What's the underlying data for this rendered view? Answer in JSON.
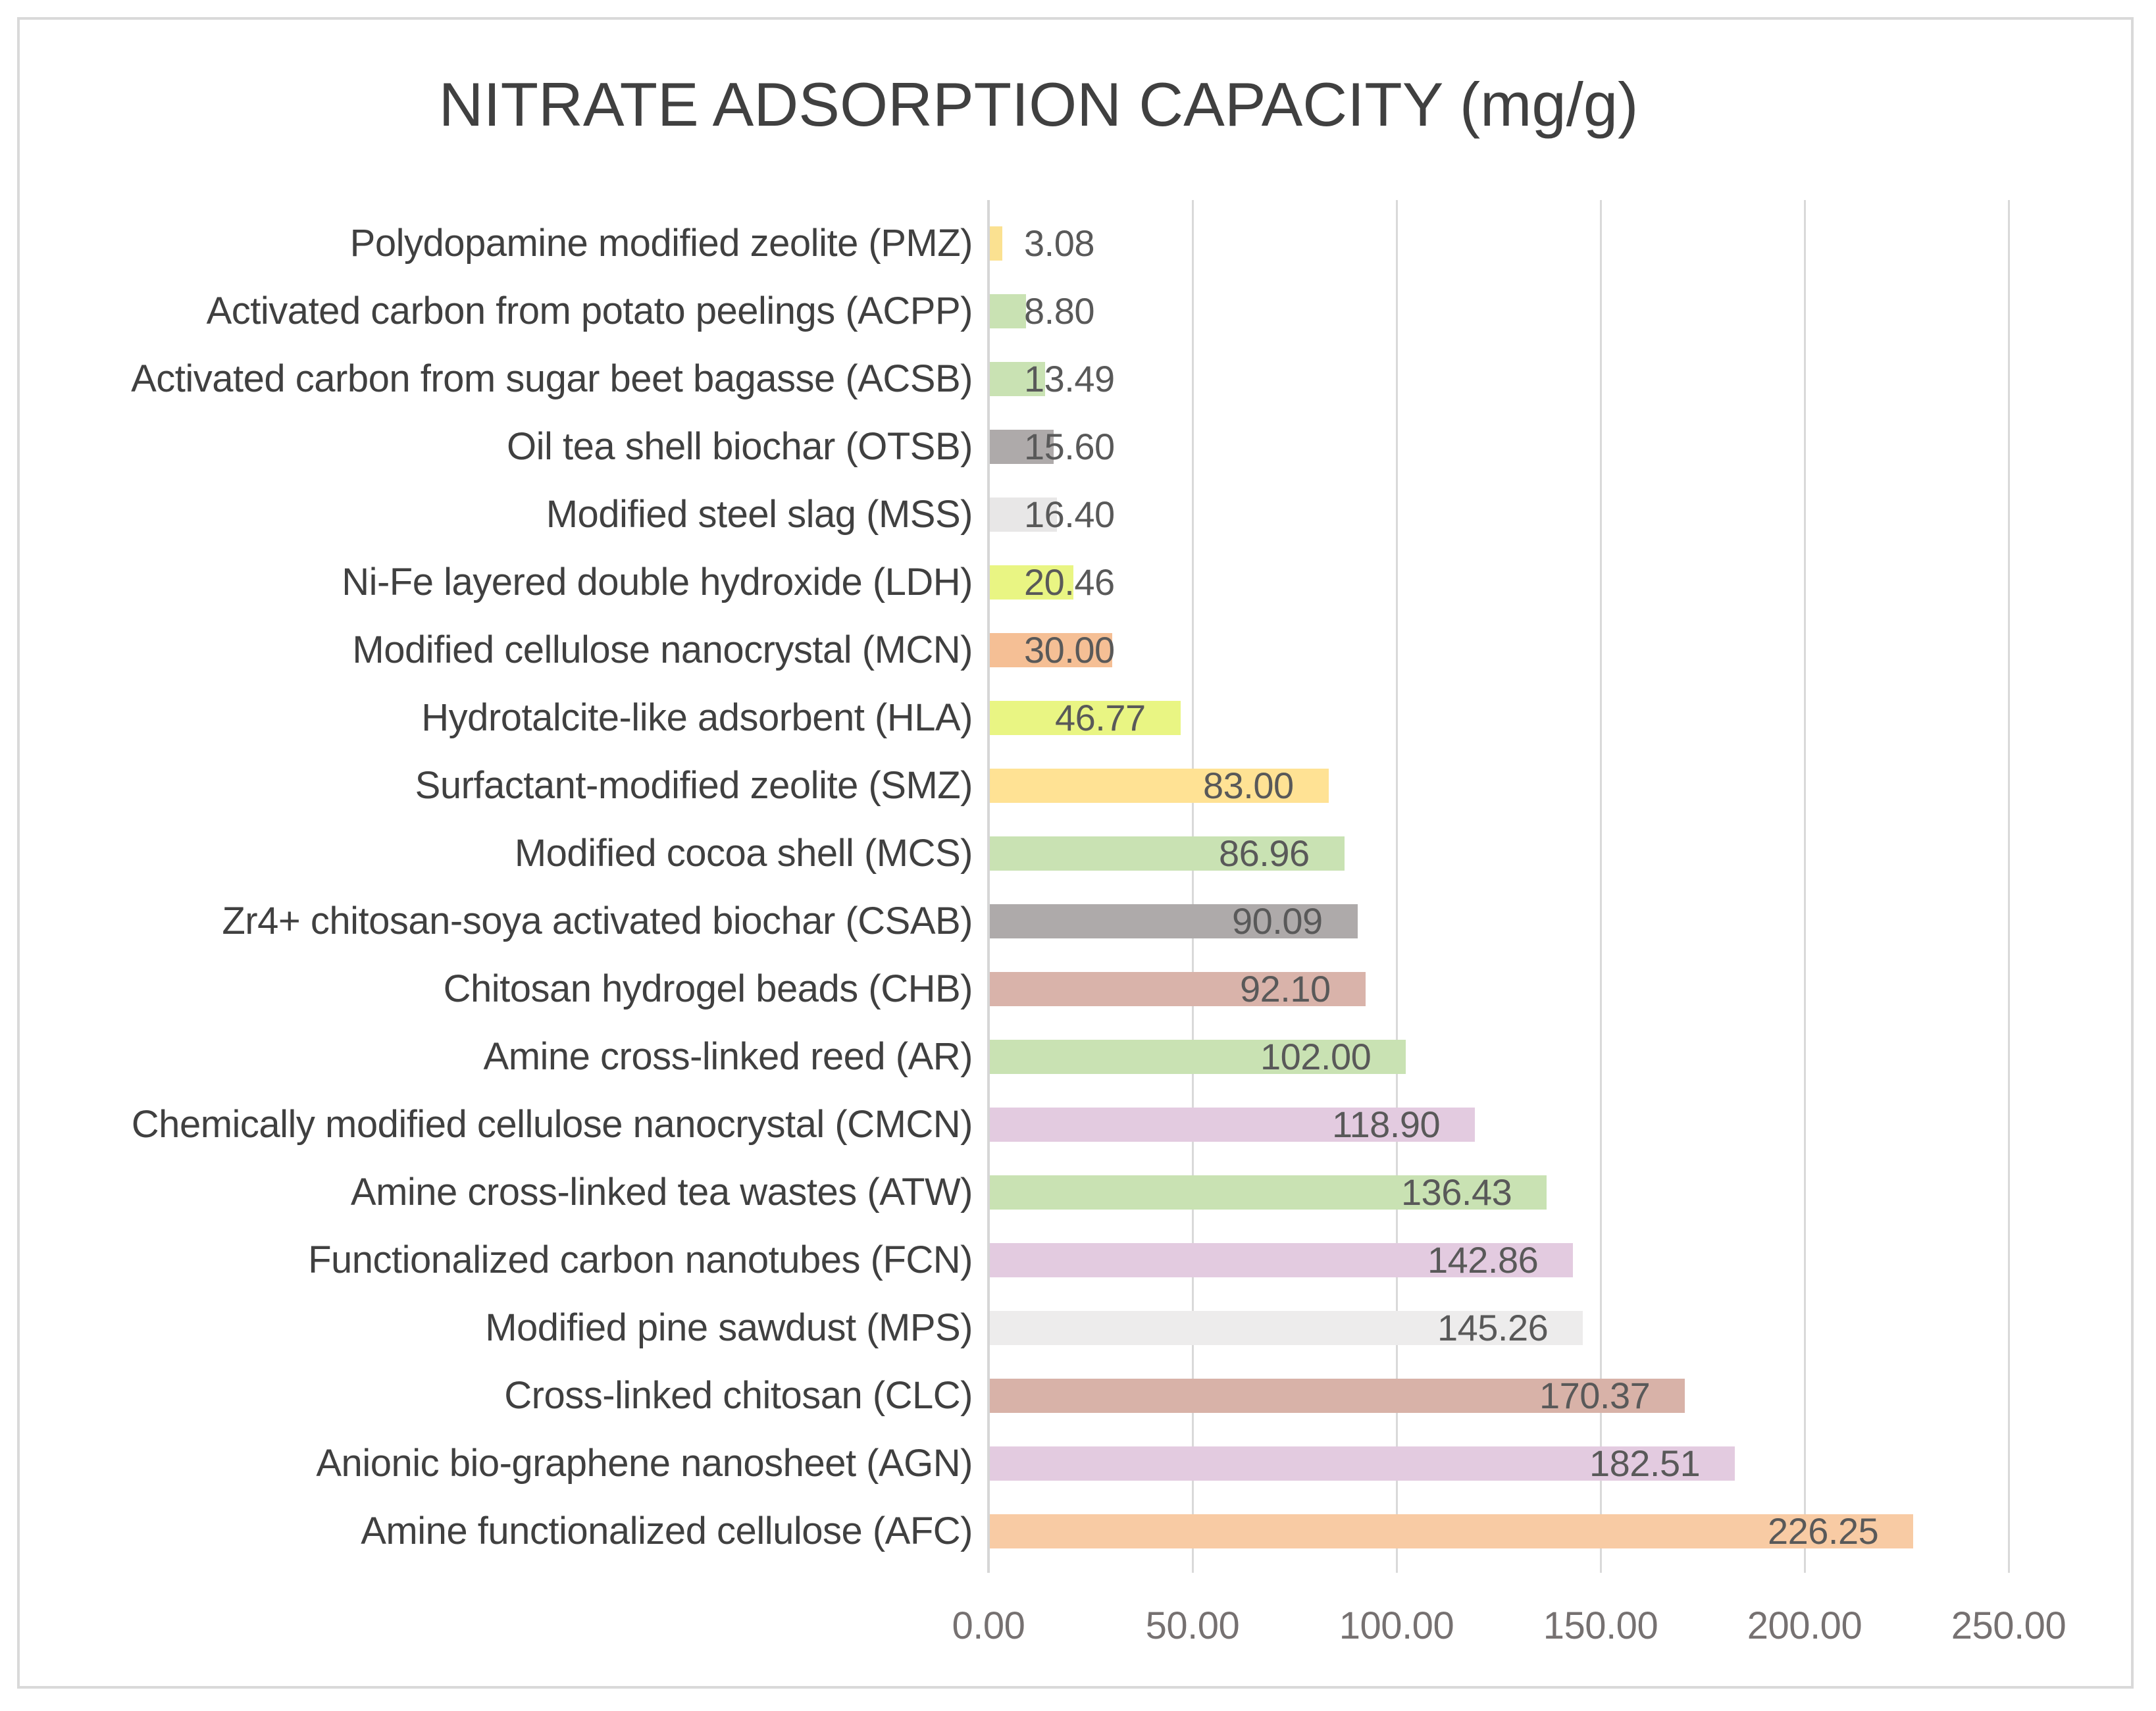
{
  "chart_data": {
    "type": "bar",
    "orientation": "horizontal",
    "title": "NITRATE ADSORPTION CAPACITY (mg/g)",
    "xlabel": "",
    "ylabel": "",
    "xlim": [
      0,
      250
    ],
    "grid": true,
    "legend": false,
    "categories": [
      "Polydopamine modified zeolite (PMZ)",
      "Activated carbon from potato peelings (ACPP)",
      "Activated carbon from sugar beet bagasse (ACSB)",
      "Oil tea shell biochar (OTSB)",
      "Modified steel slag (MSS)",
      "Ni-Fe layered double hydroxide (LDH)",
      "Modified cellulose nanocrystal (MCN)",
      "Hydrotalcite-like adsorbent (HLA)",
      "Surfactant-modified zeolite (SMZ)",
      "Modified cocoa shell (MCS)",
      "Zr4+ chitosan-soya activated biochar (CSAB)",
      "Chitosan hydrogel beads (CHB)",
      "Amine cross-linked reed (AR)",
      "Chemically modified cellulose nanocrystal (CMCN)",
      "Amine cross-linked tea wastes (ATW)",
      "Functionalized carbon nanotubes (FCN)",
      "Modified pine sawdust (MPS)",
      "Cross-linked chitosan (CLC)",
      "Anionic bio-graphene nanosheet (AGN)",
      "Amine functionalized cellulose (AFC)"
    ],
    "values": [
      3.08,
      8.8,
      13.49,
      15.6,
      16.4,
      20.46,
      30.0,
      46.77,
      83.0,
      86.96,
      90.09,
      92.1,
      102.0,
      118.9,
      136.43,
      142.86,
      145.26,
      170.37,
      182.51,
      226.25
    ],
    "value_labels": [
      "3.08",
      "8.80",
      "13.49",
      "15.60",
      "16.40",
      "20.46",
      "30.00",
      "46.77",
      "83.00",
      "86.96",
      "90.09",
      "92.10",
      "102.00",
      "118.90",
      "136.43",
      "142.86",
      "145.26",
      "170.37",
      "182.51",
      "226.25"
    ],
    "bar_colors": [
      "#FBE191",
      "#C9E2B3",
      "#C9E2B3",
      "#AEAAAA",
      "#E8E7E7",
      "#E9F583",
      "#F5BF95",
      "#E9F583",
      "#FFE294",
      "#C9E2B3",
      "#AEAAAA",
      "#D9B3AA",
      "#C9E2B3",
      "#E3CBE0",
      "#C9E2B3",
      "#E3CBE0",
      "#EDECEC",
      "#D8B2A8",
      "#E3CBE0",
      "#F8CBA4"
    ],
    "x_ticks": [
      "0.00",
      "50.00",
      "100.00",
      "150.00",
      "200.00",
      "250.00"
    ],
    "x_tick_values": [
      0,
      50,
      100,
      150,
      200,
      250
    ]
  },
  "colors": {
    "background": "#FFFFFF",
    "frame_border": "#D9D9D9",
    "gridline": "#D9D9D9",
    "title_text": "#404040",
    "category_text": "#404040",
    "value_text": "#595959",
    "tick_text": "#767171"
  }
}
